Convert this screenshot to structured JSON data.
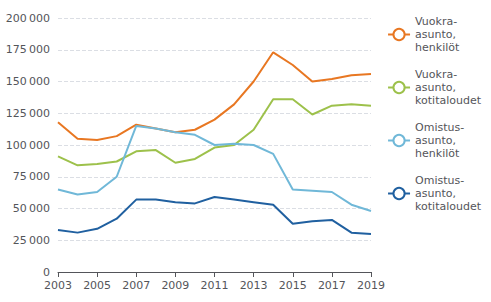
{
  "chart_data": {
    "type": "line",
    "x": [
      2003,
      2004,
      2005,
      2006,
      2007,
      2008,
      2009,
      2010,
      2011,
      2012,
      2013,
      2014,
      2015,
      2016,
      2017,
      2018,
      2019
    ],
    "series": [
      {
        "name": "Vuokra-\nasunto,\nhenkilöt",
        "color": "#E87722",
        "values": [
          118000,
          105000,
          104000,
          107000,
          116000,
          113000,
          110000,
          112000,
          120000,
          132000,
          150000,
          173000,
          163000,
          150000,
          152000,
          155000,
          156000
        ]
      },
      {
        "name": "Vuokra-\nasunto,\nkotitaloudet",
        "color": "#9DC14B",
        "values": [
          91000,
          84000,
          85000,
          87000,
          95000,
          96000,
          86000,
          89000,
          98000,
          100000,
          112000,
          136000,
          136000,
          124000,
          131000,
          132000,
          131000
        ]
      },
      {
        "name": "Omistus-\nasunto,\nhenkilöt",
        "color": "#70B8D8",
        "values": [
          65000,
          61000,
          63000,
          75000,
          115000,
          113000,
          110000,
          108000,
          100000,
          101000,
          100000,
          93000,
          65000,
          64000,
          63000,
          53000,
          48000
        ]
      },
      {
        "name": "Omistus-\nasunto,\nkotitaloudet",
        "color": "#2060A0",
        "values": [
          33000,
          31000,
          34000,
          42000,
          57000,
          57000,
          55000,
          54000,
          59000,
          57000,
          55000,
          53000,
          38000,
          40000,
          41000,
          31000,
          30000
        ]
      }
    ],
    "xlim": [
      2003,
      2019
    ],
    "xticks": [
      2003,
      2005,
      2007,
      2009,
      2011,
      2013,
      2015,
      2017,
      2019
    ],
    "ylim": [
      0,
      200000
    ],
    "yticks": [
      0,
      {
        "value": 25000,
        "label": "25 000"
      },
      {
        "value": 50000,
        "label": "50 000"
      },
      {
        "value": 75000,
        "label": "75 000"
      },
      {
        "value": 100000,
        "label": "100 000"
      },
      {
        "value": 125000,
        "label": "125 000"
      },
      {
        "value": 150000,
        "label": "150 000"
      },
      {
        "value": 175000,
        "label": "175 000"
      },
      {
        "value": 200000,
        "label": "200 000"
      }
    ],
    "grid": true,
    "legend": "right"
  }
}
